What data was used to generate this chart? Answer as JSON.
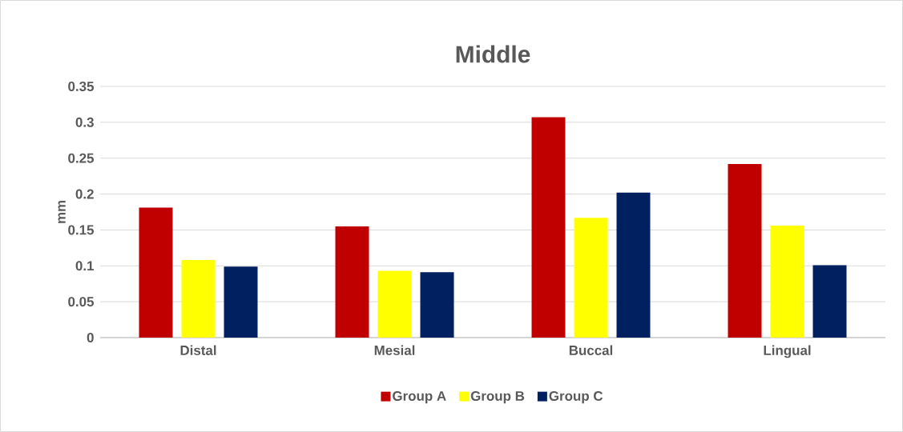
{
  "chart_data": {
    "type": "bar",
    "title": "Middle",
    "ylabel": "mm",
    "categories": [
      "Distal",
      "Mesial",
      "Buccal",
      "Lingual"
    ],
    "series": [
      {
        "name": "Group A",
        "color": "#c00000",
        "values": [
          0.181,
          0.155,
          0.307,
          0.242
        ]
      },
      {
        "name": "Group B",
        "color": "#ffff00",
        "values": [
          0.108,
          0.093,
          0.167,
          0.156
        ]
      },
      {
        "name": "Group C",
        "color": "#002060",
        "values": [
          0.099,
          0.091,
          0.202,
          0.101
        ]
      }
    ],
    "ylim": [
      0,
      0.35
    ],
    "yticks": [
      0,
      0.05,
      0.1,
      0.15,
      0.2,
      0.25,
      0.3,
      0.35
    ],
    "grid": "y",
    "legend": "bottom"
  }
}
